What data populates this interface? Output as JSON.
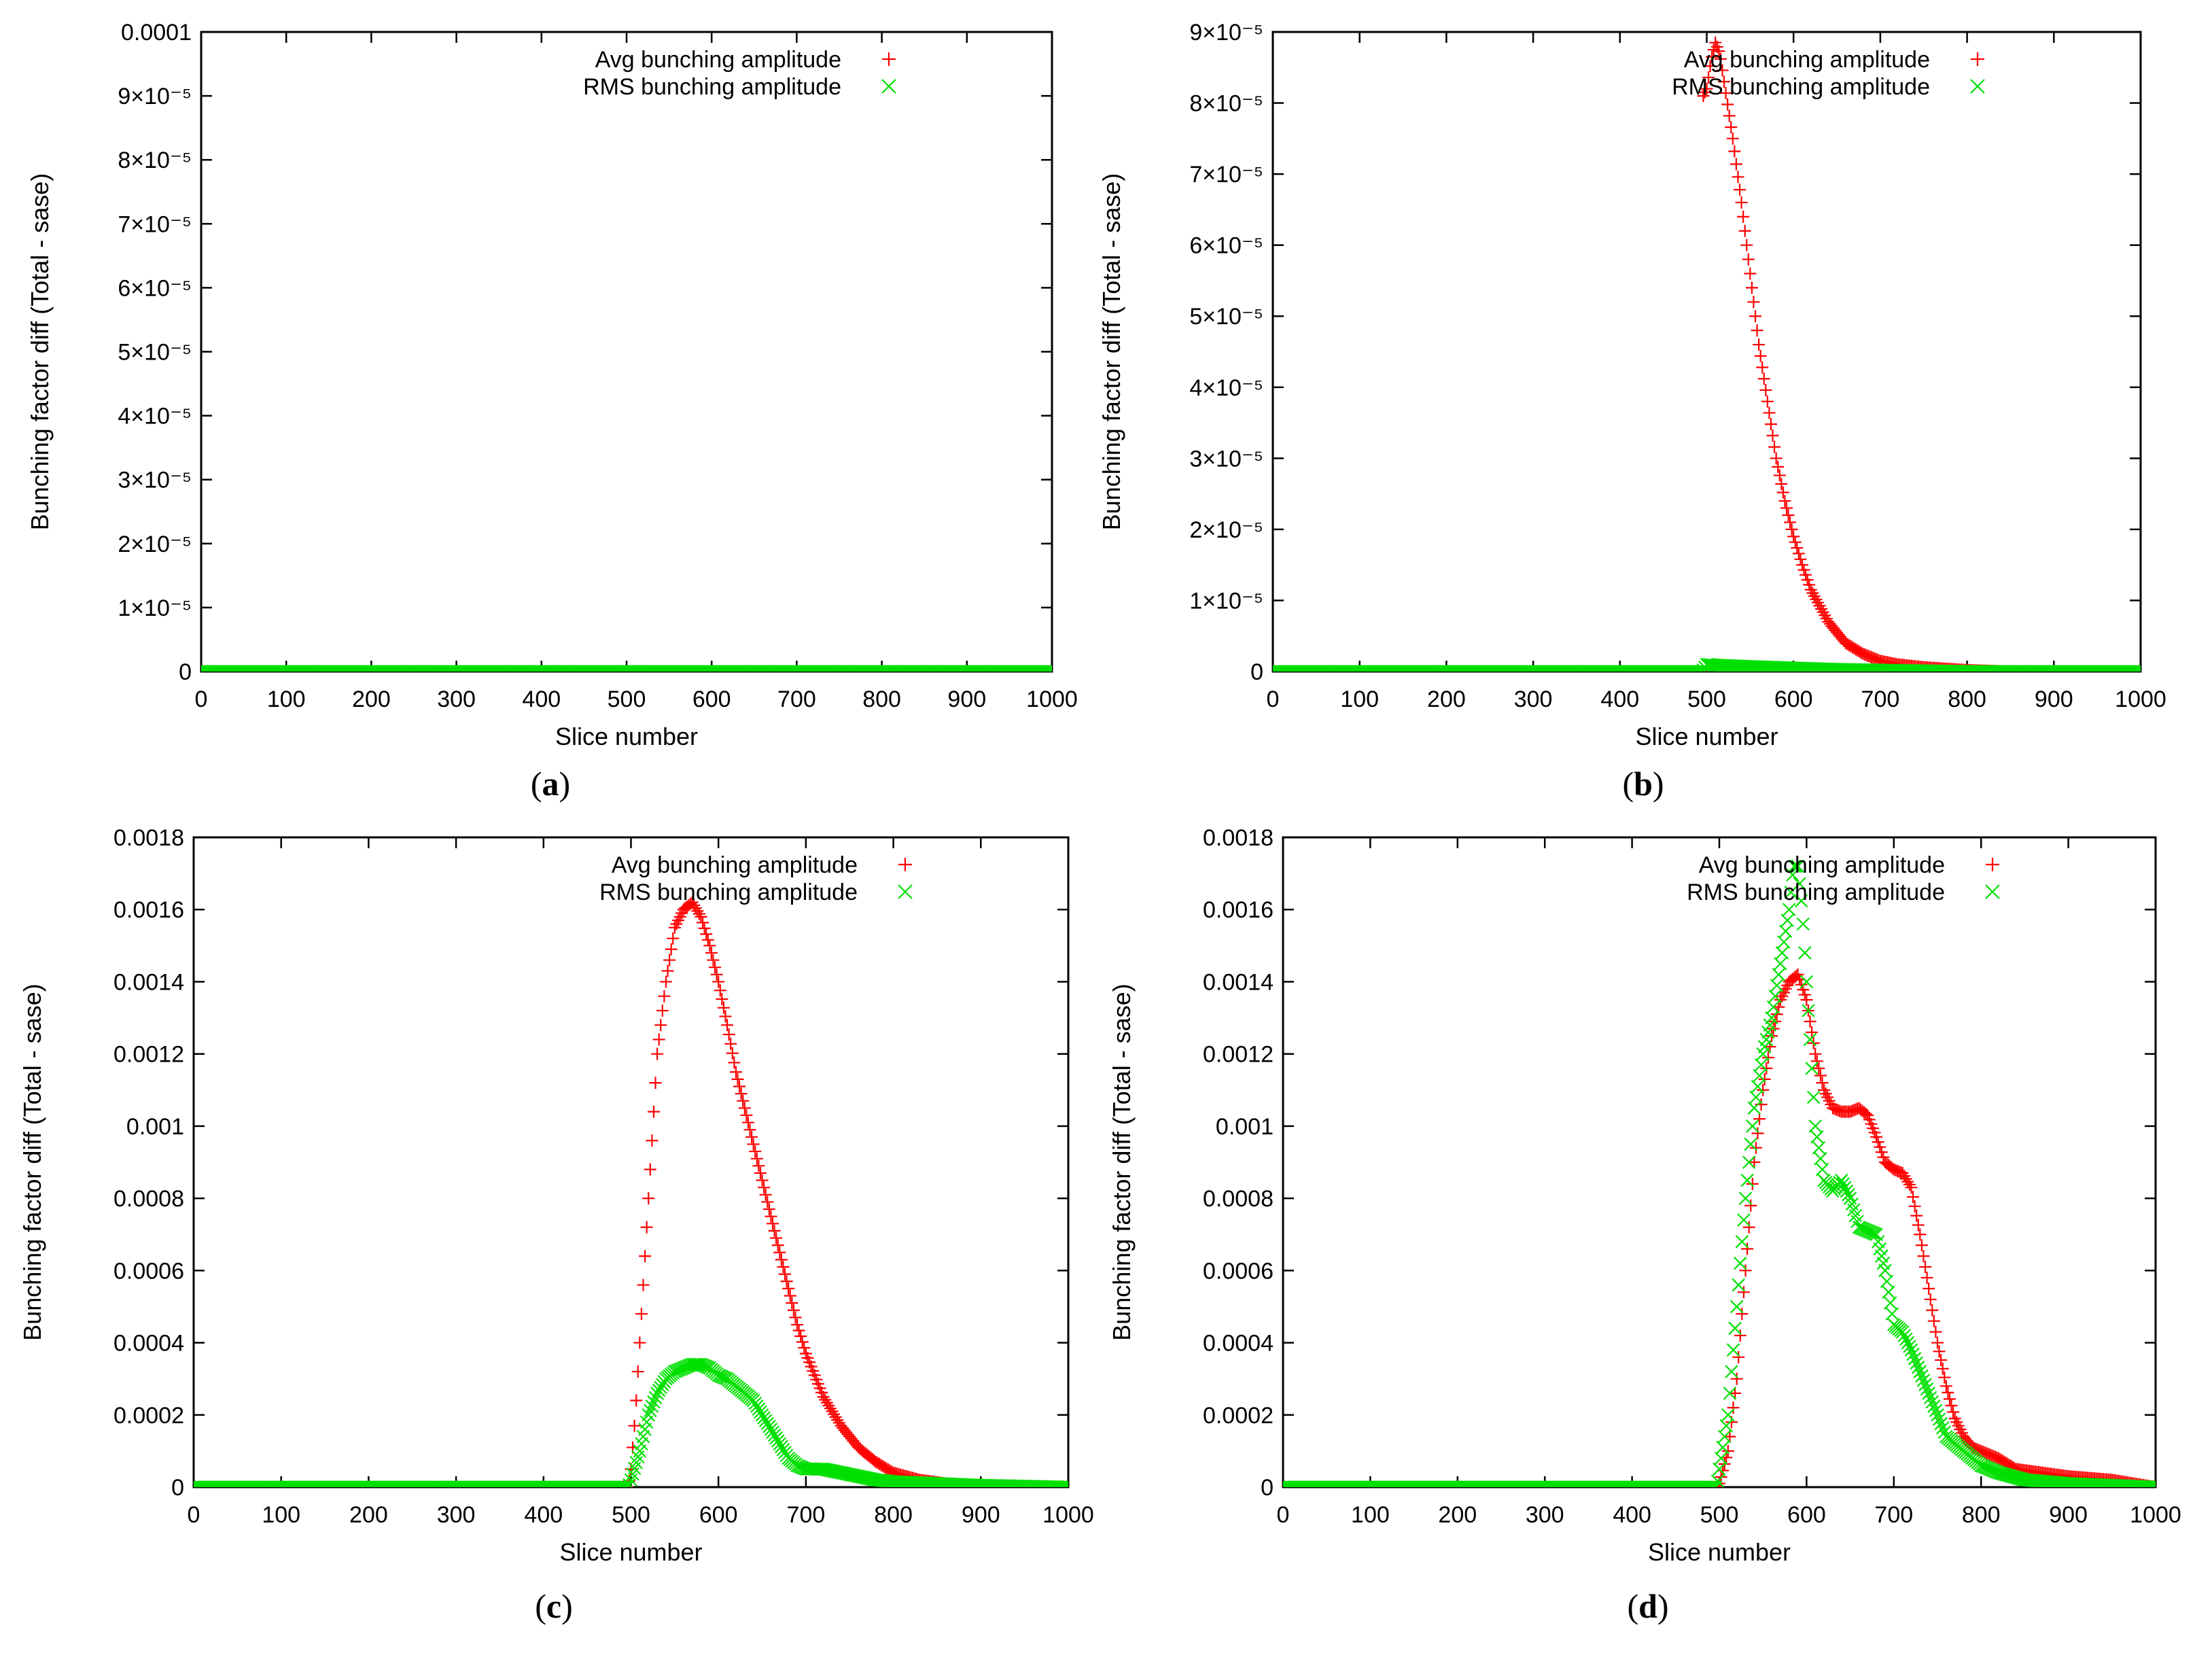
{
  "figure": {
    "panels": [
      {
        "caption_open": "(",
        "caption_letter": "a",
        "caption_close": ")"
      },
      {
        "caption_open": "(",
        "caption_letter": "b",
        "caption_close": ")"
      },
      {
        "caption_open": "(",
        "caption_letter": "c",
        "caption_close": ")"
      },
      {
        "caption_open": "(",
        "caption_letter": "d",
        "caption_close": ")"
      }
    ]
  },
  "chart_data": [
    {
      "type": "scatter",
      "title": "",
      "xlabel": "Slice number",
      "ylabel": "Bunching factor diff (Total - sase)",
      "xlim": [
        0,
        1000
      ],
      "ylim": [
        0,
        0.0001
      ],
      "xticks": [
        "0",
        "100",
        "200",
        "300",
        "400",
        "500",
        "600",
        "700",
        "800",
        "900",
        "1000"
      ],
      "yticks": [
        {
          "value": 0,
          "label": "0"
        },
        {
          "value": 1e-05,
          "label": "1×10⁻⁵"
        },
        {
          "value": 2e-05,
          "label": "2×10⁻⁵"
        },
        {
          "value": 3e-05,
          "label": "3×10⁻⁵"
        },
        {
          "value": 4e-05,
          "label": "4×10⁻⁵"
        },
        {
          "value": 5e-05,
          "label": "5×10⁻⁵"
        },
        {
          "value": 6e-05,
          "label": "6×10⁻⁵"
        },
        {
          "value": 7e-05,
          "label": "7×10⁻⁵"
        },
        {
          "value": 8e-05,
          "label": "8×10⁻⁵"
        },
        {
          "value": 9e-05,
          "label": "9×10⁻⁵"
        },
        {
          "value": 0.0001,
          "label": "0.0001"
        }
      ],
      "legend_position": "top-right",
      "series": [
        {
          "name": "Avg bunching amplitude",
          "marker": "plus",
          "color": "#ff0000",
          "points": [
            [
              0,
              0
            ],
            [
              500,
              0
            ],
            [
              1000,
              0
            ]
          ]
        },
        {
          "name": "RMS bunching amplitude",
          "marker": "cross",
          "color": "#00e000",
          "points": [
            [
              0,
              0
            ],
            [
              500,
              0
            ],
            [
              1000,
              0
            ]
          ]
        }
      ]
    },
    {
      "type": "scatter",
      "title": "",
      "xlabel": "Slice number",
      "ylabel": "Bunching factor diff (Total - sase)",
      "xlim": [
        0,
        1000
      ],
      "ylim": [
        0,
        9e-05
      ],
      "xticks": [
        "0",
        "100",
        "200",
        "300",
        "400",
        "500",
        "600",
        "700",
        "800",
        "900",
        "1000"
      ],
      "yticks": [
        {
          "value": 0,
          "label": "0"
        },
        {
          "value": 1e-05,
          "label": "1×10⁻⁵"
        },
        {
          "value": 2e-05,
          "label": "2×10⁻⁵"
        },
        {
          "value": 3e-05,
          "label": "3×10⁻⁵"
        },
        {
          "value": 4e-05,
          "label": "4×10⁻⁵"
        },
        {
          "value": 5e-05,
          "label": "5×10⁻⁵"
        },
        {
          "value": 6e-05,
          "label": "6×10⁻⁵"
        },
        {
          "value": 7e-05,
          "label": "7×10⁻⁵"
        },
        {
          "value": 8e-05,
          "label": "8×10⁻⁵"
        },
        {
          "value": 9e-05,
          "label": "9×10⁻⁵"
        }
      ],
      "legend_position": "top-right",
      "series": [
        {
          "name": "Avg bunching amplitude",
          "marker": "plus",
          "color": "#ff0000",
          "points": [
            [
              0,
              0
            ],
            [
              495,
              0
            ],
            [
              496,
              8.1e-05
            ],
            [
              500,
              8.2e-05
            ],
            [
              505,
              8.6e-05
            ],
            [
              510,
              8.85e-05
            ],
            [
              515,
              8.7e-05
            ],
            [
              520,
              8.3e-05
            ],
            [
              530,
              7.5e-05
            ],
            [
              540,
              6.6e-05
            ],
            [
              550,
              5.6e-05
            ],
            [
              560,
              4.6e-05
            ],
            [
              570,
              3.8e-05
            ],
            [
              580,
              3e-05
            ],
            [
              590,
              2.4e-05
            ],
            [
              600,
              1.9e-05
            ],
            [
              610,
              1.5e-05
            ],
            [
              620,
              1.15e-05
            ],
            [
              640,
              7e-06
            ],
            [
              660,
              4e-06
            ],
            [
              680,
              2.5e-06
            ],
            [
              700,
              1.5e-06
            ],
            [
              720,
              1e-06
            ],
            [
              750,
              6e-07
            ],
            [
              800,
              2e-07
            ],
            [
              850,
              0
            ],
            [
              1000,
              0
            ]
          ]
        },
        {
          "name": "RMS bunching amplitude",
          "marker": "cross",
          "color": "#00e000",
          "points": [
            [
              0,
              0
            ],
            [
              495,
              0
            ],
            [
              500,
              1e-06
            ],
            [
              510,
              9e-07
            ],
            [
              550,
              7e-07
            ],
            [
              600,
              5e-07
            ],
            [
              650,
              3e-07
            ],
            [
              700,
              2e-07
            ],
            [
              750,
              1e-07
            ],
            [
              800,
              0
            ],
            [
              1000,
              0
            ]
          ]
        }
      ]
    },
    {
      "type": "scatter",
      "title": "",
      "xlabel": "Slice number",
      "ylabel": "Bunching factor diff (Total - sase)",
      "xlim": [
        0,
        1000
      ],
      "ylim": [
        0,
        0.0018
      ],
      "xticks": [
        "0",
        "100",
        "200",
        "300",
        "400",
        "500",
        "600",
        "700",
        "800",
        "900",
        "1000"
      ],
      "yticks": [
        {
          "value": 0,
          "label": "0"
        },
        {
          "value": 0.0002,
          "label": "0.0002"
        },
        {
          "value": 0.0004,
          "label": "0.0004"
        },
        {
          "value": 0.0006,
          "label": "0.0006"
        },
        {
          "value": 0.0008,
          "label": "0.0008"
        },
        {
          "value": 0.001,
          "label": "0.001"
        },
        {
          "value": 0.0012,
          "label": "0.0012"
        },
        {
          "value": 0.0014,
          "label": "0.0014"
        },
        {
          "value": 0.0016,
          "label": "0.0016"
        },
        {
          "value": 0.0018,
          "label": "0.0018"
        }
      ],
      "legend_position": "top-right",
      "series": [
        {
          "name": "Avg bunching amplitude",
          "marker": "plus",
          "color": "#ff0000",
          "points": [
            [
              0,
              0
            ],
            [
              497,
              0
            ],
            [
              500,
              5e-05
            ],
            [
              505,
              0.0002
            ],
            [
              510,
              0.0004
            ],
            [
              515,
              0.0006
            ],
            [
              520,
              0.0008
            ],
            [
              525,
              0.001
            ],
            [
              530,
              0.0012
            ],
            [
              540,
              0.0014
            ],
            [
              550,
              0.00155
            ],
            [
              560,
              0.0016
            ],
            [
              570,
              0.00162
            ],
            [
              580,
              0.00158
            ],
            [
              590,
              0.0015
            ],
            [
              600,
              0.0014
            ],
            [
              610,
              0.00128
            ],
            [
              620,
              0.00115
            ],
            [
              630,
              0.00105
            ],
            [
              640,
              0.00095
            ],
            [
              650,
              0.00085
            ],
            [
              660,
              0.00075
            ],
            [
              670,
              0.00065
            ],
            [
              680,
              0.00055
            ],
            [
              690,
              0.00045
            ],
            [
              700,
              0.00037
            ],
            [
              720,
              0.00025
            ],
            [
              740,
              0.00017
            ],
            [
              760,
              0.00011
            ],
            [
              780,
              7e-05
            ],
            [
              800,
              4e-05
            ],
            [
              830,
              2e-05
            ],
            [
              860,
              1e-05
            ],
            [
              900,
              5e-06
            ],
            [
              1000,
              0
            ]
          ]
        },
        {
          "name": "RMS bunching amplitude",
          "marker": "cross",
          "color": "#00e000",
          "points": [
            [
              0,
              0
            ],
            [
              497,
              0
            ],
            [
              500,
              2e-05
            ],
            [
              510,
              0.0001
            ],
            [
              520,
              0.0002
            ],
            [
              530,
              0.00026
            ],
            [
              540,
              0.0003
            ],
            [
              550,
              0.00032
            ],
            [
              560,
              0.00033
            ],
            [
              570,
              0.00034
            ],
            [
              580,
              0.00034
            ],
            [
              590,
              0.00033
            ],
            [
              600,
              0.00031
            ],
            [
              610,
              0.0003
            ],
            [
              620,
              0.00028
            ],
            [
              640,
              0.00024
            ],
            [
              650,
              0.0002
            ],
            [
              660,
              0.00016
            ],
            [
              670,
              0.00012
            ],
            [
              680,
              8e-05
            ],
            [
              690,
              6e-05
            ],
            [
              700,
              5e-05
            ],
            [
              720,
              5e-05
            ],
            [
              740,
              4e-05
            ],
            [
              760,
              3e-05
            ],
            [
              780,
              2e-05
            ],
            [
              800,
              1.5e-05
            ],
            [
              850,
              1e-05
            ],
            [
              900,
              5e-06
            ],
            [
              1000,
              0
            ]
          ]
        }
      ]
    },
    {
      "type": "scatter",
      "title": "",
      "xlabel": "Slice number",
      "ylabel": "Bunching factor diff (Total - sase)",
      "xlim": [
        0,
        1000
      ],
      "ylim": [
        0,
        0.0018
      ],
      "xticks": [
        "0",
        "100",
        "200",
        "300",
        "400",
        "500",
        "600",
        "700",
        "800",
        "900",
        "1000"
      ],
      "yticks": [
        {
          "value": 0,
          "label": "0"
        },
        {
          "value": 0.0002,
          "label": "0.0002"
        },
        {
          "value": 0.0004,
          "label": "0.0004"
        },
        {
          "value": 0.0006,
          "label": "0.0006"
        },
        {
          "value": 0.0008,
          "label": "0.0008"
        },
        {
          "value": 0.001,
          "label": "0.001"
        },
        {
          "value": 0.0012,
          "label": "0.0012"
        },
        {
          "value": 0.0014,
          "label": "0.0014"
        },
        {
          "value": 0.0016,
          "label": "0.0016"
        },
        {
          "value": 0.0018,
          "label": "0.0018"
        }
      ],
      "legend_position": "top-right",
      "series": [
        {
          "name": "Avg bunching amplitude",
          "marker": "plus",
          "color": "#ff0000",
          "points": [
            [
              0,
              0
            ],
            [
              497,
              0
            ],
            [
              500,
              1e-05
            ],
            [
              510,
              0.0001
            ],
            [
              520,
              0.0003
            ],
            [
              530,
              0.0006
            ],
            [
              540,
              0.0009
            ],
            [
              550,
              0.0011
            ],
            [
              560,
              0.00125
            ],
            [
              570,
              0.00135
            ],
            [
              580,
              0.0014
            ],
            [
              590,
              0.00142
            ],
            [
              600,
              0.00135
            ],
            [
              610,
              0.0012
            ],
            [
              620,
              0.0011
            ],
            [
              630,
              0.00105
            ],
            [
              640,
              0.00104
            ],
            [
              650,
              0.00104
            ],
            [
              660,
              0.00105
            ],
            [
              670,
              0.00103
            ],
            [
              680,
              0.00097
            ],
            [
              690,
              0.0009
            ],
            [
              700,
              0.00088
            ],
            [
              710,
              0.00087
            ],
            [
              720,
              0.00083
            ],
            [
              730,
              0.0007
            ],
            [
              740,
              0.00055
            ],
            [
              750,
              0.0004
            ],
            [
              760,
              0.00028
            ],
            [
              770,
              0.00019
            ],
            [
              780,
              0.00014
            ],
            [
              790,
              0.00011
            ],
            [
              800,
              0.0001
            ],
            [
              820,
              8e-05
            ],
            [
              840,
              5e-05
            ],
            [
              870,
              4e-05
            ],
            [
              900,
              3e-05
            ],
            [
              950,
              2e-05
            ],
            [
              1000,
              0
            ]
          ]
        },
        {
          "name": "RMS bunching amplitude",
          "marker": "cross",
          "color": "#00e000",
          "points": [
            [
              0,
              0
            ],
            [
              497,
              0
            ],
            [
              500,
              5e-05
            ],
            [
              510,
              0.0002
            ],
            [
              520,
              0.0005
            ],
            [
              530,
              0.0008
            ],
            [
              540,
              0.00105
            ],
            [
              550,
              0.0012
            ],
            [
              560,
              0.0013
            ],
            [
              570,
              0.00145
            ],
            [
              580,
              0.0016
            ],
            [
              585,
              0.00172
            ],
            [
              590,
              0.00172
            ],
            [
              595,
              0.0016
            ],
            [
              600,
              0.0014
            ],
            [
              605,
              0.0012
            ],
            [
              610,
              0.001
            ],
            [
              620,
              0.00085
            ],
            [
              630,
              0.00082
            ],
            [
              640,
              0.00085
            ],
            [
              650,
              0.0008
            ],
            [
              660,
              0.00072
            ],
            [
              670,
              0.00071
            ],
            [
              680,
              0.0007
            ],
            [
              690,
              0.0006
            ],
            [
              700,
              0.00045
            ],
            [
              710,
              0.00043
            ],
            [
              720,
              0.00038
            ],
            [
              730,
              0.00032
            ],
            [
              740,
              0.00026
            ],
            [
              750,
              0.0002
            ],
            [
              760,
              0.00014
            ],
            [
              770,
              0.00012
            ],
            [
              780,
              0.0001
            ],
            [
              790,
              8e-05
            ],
            [
              800,
              6e-05
            ],
            [
              820,
              4e-05
            ],
            [
              850,
              2e-05
            ],
            [
              900,
              1e-05
            ],
            [
              1000,
              0
            ]
          ]
        }
      ]
    }
  ]
}
